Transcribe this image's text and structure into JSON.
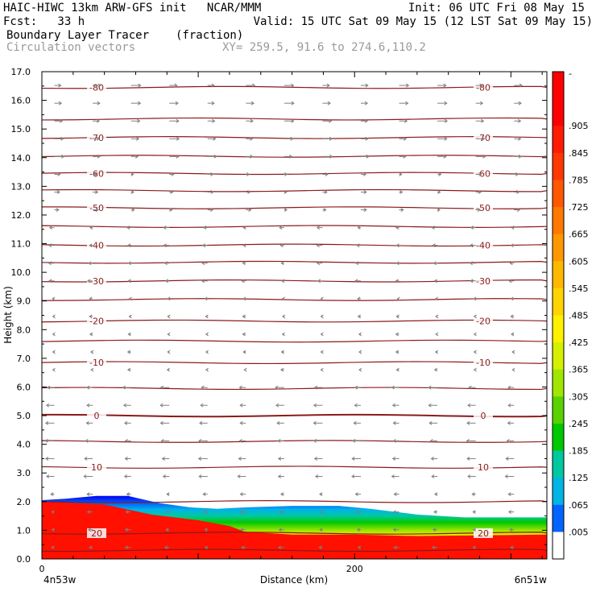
{
  "header": {
    "line1_left": "HAIC-HIWC 13km ARW-GFS init   NCAR/MMM",
    "line1_right": "Init: 06 UTC Fri 08 May 15",
    "line2_left": "Fcst:   33 h",
    "line2_right": "Valid: 15 UTC Sat 09 May 15 (12 LST Sat 09 May 15)",
    "field_name": "Boundary Layer Tracer",
    "field_units": "(fraction)",
    "overlay_name": "Circulation vectors",
    "xy_readout": "XY= 259.5, 91.6 to 274.6,110.2"
  },
  "chart_data": {
    "type": "heatmap",
    "title": "Boundary Layer Tracer",
    "units": "fraction",
    "ylabel": "Height (km)",
    "xlabel": "Distance (km)",
    "xlim": [
      0,
      323
    ],
    "ylim": [
      0,
      17
    ],
    "yticks": [
      "0.0",
      "1.0",
      "2.0",
      "3.0",
      "4.0",
      "5.0",
      "6.0",
      "7.0",
      "8.0",
      "9.0",
      "10.0",
      "11.0",
      "12.0",
      "13.0",
      "14.0",
      "15.0",
      "16.0",
      "17.0"
    ],
    "xticks": [
      {
        "value": 0,
        "label": "0"
      },
      {
        "value": 200,
        "label": "200"
      }
    ],
    "x_endpoints": {
      "left": "4n53w",
      "right": "6n51w"
    },
    "colorbar": {
      "labels": [
        "-",
        ".905",
        ".845",
        ".785",
        ".725",
        ".665",
        ".605",
        ".545",
        ".485",
        ".425",
        ".365",
        ".305",
        ".245",
        ".185",
        ".125",
        ".065",
        ".005"
      ],
      "colors": [
        "#ff0000",
        "#ff0000",
        "#ff1c00",
        "#ff3800",
        "#ff5800",
        "#ff7800",
        "#ff9800",
        "#ffb800",
        "#ffd400",
        "#fff000",
        "#d4f000",
        "#a0e600",
        "#5ad200",
        "#00c800",
        "#00c8a0",
        "#00b4e6",
        "#0064ff",
        "#0000f0"
      ]
    },
    "tracer_top_km": [
      [
        0,
        2.05
      ],
      [
        15,
        2.1
      ],
      [
        35,
        2.2
      ],
      [
        55,
        2.2
      ],
      [
        75,
        1.95
      ],
      [
        95,
        1.8
      ],
      [
        112,
        1.75
      ],
      [
        130,
        1.8
      ],
      [
        160,
        1.85
      ],
      [
        190,
        1.85
      ],
      [
        210,
        1.75
      ],
      [
        240,
        1.55
      ],
      [
        270,
        1.45
      ],
      [
        300,
        1.45
      ],
      [
        323,
        1.45
      ]
    ],
    "tracer_red_top_km": [
      [
        0,
        2.0
      ],
      [
        40,
        1.9
      ],
      [
        70,
        1.55
      ],
      [
        100,
        1.35
      ],
      [
        120,
        1.15
      ],
      [
        130,
        0.95
      ],
      [
        160,
        0.85
      ],
      [
        200,
        0.85
      ],
      [
        240,
        0.8
      ],
      [
        323,
        0.85
      ]
    ],
    "temperature_contours": [
      {
        "label": "-80",
        "y": 16.45
      },
      {
        "label": "",
        "y": 15.35
      },
      {
        "label": "-70",
        "y": 14.7
      },
      {
        "label": "",
        "y": 14.05
      },
      {
        "label": "-60",
        "y": 13.45
      },
      {
        "label": "",
        "y": 12.85
      },
      {
        "label": "-50",
        "y": 12.25
      },
      {
        "label": "",
        "y": 11.6
      },
      {
        "label": "-40",
        "y": 10.95
      },
      {
        "label": "",
        "y": 10.35
      },
      {
        "label": "-30",
        "y": 9.7
      },
      {
        "label": "",
        "y": 9.05
      },
      {
        "label": "-20",
        "y": 8.3
      },
      {
        "label": "",
        "y": 7.6
      },
      {
        "label": "-10",
        "y": 6.85
      },
      {
        "label": "",
        "y": 5.95
      },
      {
        "label": "0",
        "y": 5.0
      },
      {
        "label": "",
        "y": 4.1
      },
      {
        "label": "10",
        "y": 3.2
      },
      {
        "label": "",
        "y": 2.0
      },
      {
        "label": "20",
        "y": 0.9
      },
      {
        "label": "",
        "y": 0.3
      }
    ],
    "contour_color": "#8b1a1a",
    "vector_color": "#7f7f7f"
  }
}
